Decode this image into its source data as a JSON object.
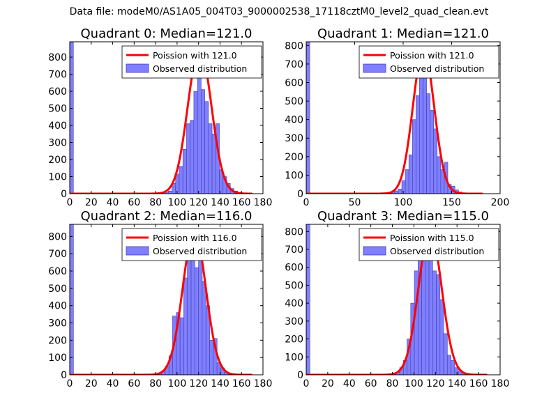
{
  "figure": {
    "suptitle": "Data file: modeM0/AS1A05_004T03_9000002538_17118cztM0_level2_quad_clean.evt",
    "colors": {
      "bar_fill": "#7f7fff",
      "bar_edge": "#3f3fb0",
      "fit_line": "#ff0000",
      "axes": "#000000"
    }
  },
  "chart_data": [
    {
      "type": "bar",
      "title": "Quadrant 0: Median=121.0",
      "xlabel": "",
      "ylabel": "",
      "xlim": [
        0,
        180
      ],
      "ylim": [
        0,
        890
      ],
      "xticks": [
        0,
        20,
        40,
        60,
        80,
        100,
        120,
        140,
        160,
        180
      ],
      "yticks": [
        0,
        100,
        200,
        300,
        400,
        500,
        600,
        700,
        800
      ],
      "grid": false,
      "legend_position": "top-right",
      "series": [
        {
          "name": "Poission with 121.0",
          "kind": "poisson_line",
          "lambda": 121.0,
          "peak": 850,
          "x_range": [
            0,
            170
          ]
        },
        {
          "name": "Observed distribution",
          "kind": "histogram",
          "bin_width": 3.4,
          "bins": [
            {
              "x0": 0,
              "height": 890
            },
            {
              "x0": 74.8,
              "height": 5
            },
            {
              "x0": 88.4,
              "height": 8
            },
            {
              "x0": 91.8,
              "height": 15
            },
            {
              "x0": 95.2,
              "height": 60
            },
            {
              "x0": 98.6,
              "height": 115
            },
            {
              "x0": 102.0,
              "height": 160
            },
            {
              "x0": 105.4,
              "height": 260
            },
            {
              "x0": 108.8,
              "height": 410
            },
            {
              "x0": 112.2,
              "height": 430
            },
            {
              "x0": 115.6,
              "height": 600
            },
            {
              "x0": 119.0,
              "height": 700
            },
            {
              "x0": 122.4,
              "height": 610
            },
            {
              "x0": 125.8,
              "height": 540
            },
            {
              "x0": 129.2,
              "height": 410
            },
            {
              "x0": 132.6,
              "height": 350
            },
            {
              "x0": 136.0,
              "height": 410
            },
            {
              "x0": 139.4,
              "height": 140
            },
            {
              "x0": 142.8,
              "height": 100
            },
            {
              "x0": 146.2,
              "height": 60
            },
            {
              "x0": 149.6,
              "height": 30
            },
            {
              "x0": 153.0,
              "height": 15
            },
            {
              "x0": 156.4,
              "height": 8
            },
            {
              "x0": 159.8,
              "height": 3
            }
          ]
        }
      ]
    },
    {
      "type": "bar",
      "title": "Quadrant 1: Median=121.0",
      "xlabel": "",
      "ylabel": "",
      "xlim": [
        0,
        200
      ],
      "ylim": [
        0,
        820
      ],
      "xticks": [
        0,
        50,
        100,
        150,
        200
      ],
      "yticks": [
        0,
        100,
        200,
        300,
        400,
        500,
        600,
        700,
        800
      ],
      "grid": false,
      "legend_position": "top-right",
      "series": [
        {
          "name": "Poission with 121.0",
          "kind": "poisson_line",
          "lambda": 121.0,
          "peak": 775,
          "x_range": [
            0,
            182
          ]
        },
        {
          "name": "Observed distribution",
          "kind": "histogram",
          "bin_width": 3.65,
          "bins": [
            {
              "x0": 0,
              "height": 820
            },
            {
              "x0": 76.6,
              "height": 5
            },
            {
              "x0": 87.6,
              "height": 10
            },
            {
              "x0": 91.3,
              "height": 15
            },
            {
              "x0": 95.0,
              "height": 25
            },
            {
              "x0": 98.6,
              "height": 70
            },
            {
              "x0": 102.2,
              "height": 130
            },
            {
              "x0": 105.9,
              "height": 210
            },
            {
              "x0": 109.6,
              "height": 400
            },
            {
              "x0": 113.2,
              "height": 530
            },
            {
              "x0": 116.8,
              "height": 650
            },
            {
              "x0": 120.5,
              "height": 760
            },
            {
              "x0": 124.2,
              "height": 540
            },
            {
              "x0": 127.8,
              "height": 450
            },
            {
              "x0": 131.4,
              "height": 350
            },
            {
              "x0": 135.1,
              "height": 200
            },
            {
              "x0": 138.8,
              "height": 130
            },
            {
              "x0": 142.4,
              "height": 170
            },
            {
              "x0": 146.0,
              "height": 50
            },
            {
              "x0": 149.7,
              "height": 40
            },
            {
              "x0": 153.4,
              "height": 20
            },
            {
              "x0": 157.0,
              "height": 10
            },
            {
              "x0": 160.6,
              "height": 5
            }
          ]
        }
      ]
    },
    {
      "type": "bar",
      "title": "Quadrant 2: Median=116.0",
      "xlabel": "",
      "ylabel": "",
      "xlim": [
        0,
        180
      ],
      "ylim": [
        0,
        870
      ],
      "xticks": [
        0,
        20,
        40,
        60,
        80,
        100,
        120,
        140,
        160,
        180
      ],
      "yticks": [
        0,
        100,
        200,
        300,
        400,
        500,
        600,
        700,
        800
      ],
      "grid": false,
      "legend_position": "top-right",
      "series": [
        {
          "name": "Poission with 116.0",
          "kind": "poisson_line",
          "lambda": 116.0,
          "peak": 830,
          "x_range": [
            0,
            170
          ]
        },
        {
          "name": "Observed distribution",
          "kind": "histogram",
          "bin_width": 3.45,
          "bins": [
            {
              "x0": 0,
              "height": 870
            },
            {
              "x0": 68.0,
              "height": 5
            },
            {
              "x0": 82.0,
              "height": 10
            },
            {
              "x0": 85.5,
              "height": 20
            },
            {
              "x0": 89.0,
              "height": 50
            },
            {
              "x0": 92.4,
              "height": 110
            },
            {
              "x0": 95.8,
              "height": 340
            },
            {
              "x0": 99.3,
              "height": 360
            },
            {
              "x0": 102.8,
              "height": 330
            },
            {
              "x0": 106.2,
              "height": 560
            },
            {
              "x0": 109.6,
              "height": 760
            },
            {
              "x0": 113.1,
              "height": 800
            },
            {
              "x0": 116.6,
              "height": 620
            },
            {
              "x0": 120.0,
              "height": 750
            },
            {
              "x0": 123.4,
              "height": 540
            },
            {
              "x0": 126.9,
              "height": 400
            },
            {
              "x0": 130.4,
              "height": 200
            },
            {
              "x0": 133.8,
              "height": 210
            },
            {
              "x0": 137.2,
              "height": 70
            },
            {
              "x0": 140.7,
              "height": 40
            },
            {
              "x0": 144.2,
              "height": 15
            },
            {
              "x0": 147.6,
              "height": 5
            }
          ]
        }
      ]
    },
    {
      "type": "bar",
      "title": "Quadrant 3: Median=115.0",
      "xlabel": "",
      "ylabel": "",
      "xlim": [
        0,
        180
      ],
      "ylim": [
        0,
        840
      ],
      "xticks": [
        0,
        20,
        40,
        60,
        80,
        100,
        120,
        140,
        160,
        180
      ],
      "yticks": [
        0,
        100,
        200,
        300,
        400,
        500,
        600,
        700,
        800
      ],
      "grid": false,
      "legend_position": "top-right",
      "series": [
        {
          "name": "Poission with 115.0",
          "kind": "poisson_line",
          "lambda": 115.0,
          "peak": 805,
          "x_range": [
            0,
            168
          ]
        },
        {
          "name": "Observed distribution",
          "kind": "histogram",
          "bin_width": 3.4,
          "bins": [
            {
              "x0": 0,
              "height": 840
            },
            {
              "x0": 64.0,
              "height": 5
            },
            {
              "x0": 80.0,
              "height": 10
            },
            {
              "x0": 83.4,
              "height": 15
            },
            {
              "x0": 86.8,
              "height": 40
            },
            {
              "x0": 90.2,
              "height": 80
            },
            {
              "x0": 93.6,
              "height": 200
            },
            {
              "x0": 97.0,
              "height": 400
            },
            {
              "x0": 100.4,
              "height": 580
            },
            {
              "x0": 103.8,
              "height": 660
            },
            {
              "x0": 107.2,
              "height": 740
            },
            {
              "x0": 110.6,
              "height": 790
            },
            {
              "x0": 114.0,
              "height": 690
            },
            {
              "x0": 117.4,
              "height": 580
            },
            {
              "x0": 120.8,
              "height": 560
            },
            {
              "x0": 124.2,
              "height": 420
            },
            {
              "x0": 127.6,
              "height": 230
            },
            {
              "x0": 131.0,
              "height": 110
            },
            {
              "x0": 134.4,
              "height": 80
            },
            {
              "x0": 137.8,
              "height": 40
            },
            {
              "x0": 141.2,
              "height": 20
            },
            {
              "x0": 144.6,
              "height": 10
            }
          ]
        }
      ]
    }
  ]
}
